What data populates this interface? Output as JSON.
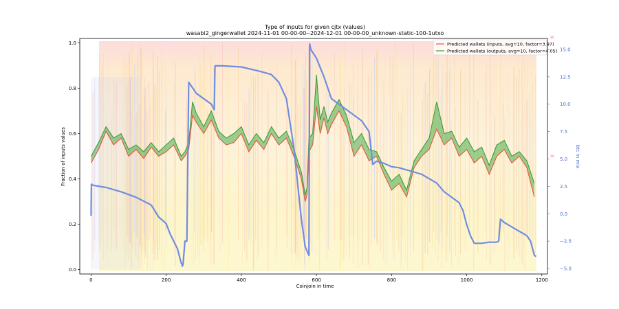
{
  "chart_data": {
    "type": "line",
    "title": "Type of inputs for given cjtx (values)",
    "subtitle": "wasabi2_gingerwallet 2024-11-01 00-00-00--2024-12-01 00-00-00_unknown-static-100-1utxo",
    "xlabel": "Coinjoin in time",
    "ylabel": "Fraction of inputs values",
    "y2label": "btc in mix",
    "xlim": [
      -30,
      1215
    ],
    "ylim": [
      -0.02,
      1.02
    ],
    "y2lim": [
      -5.5,
      16
    ],
    "xticks": [
      0,
      200,
      400,
      600,
      800,
      1000,
      1200
    ],
    "yticks": [
      0.0,
      0.2,
      0.4,
      0.6,
      0.8,
      1.0
    ],
    "y2ticks": [
      -5.0,
      -2.5,
      0.0,
      2.5,
      5.0,
      7.5,
      10.0,
      12.5,
      15.0
    ],
    "ytick_labels": [
      "0.0",
      "0.2",
      "0.4",
      "0.6",
      "0.8",
      "1.0"
    ],
    "y2tick_labels": [
      "−5.0",
      "−2.5",
      "0.0",
      "2.5",
      "5.0",
      "7.5",
      "10.0",
      "12.5",
      "15.0"
    ],
    "side_labels": [
      "20",
      "10"
    ],
    "legend_position": "top-right",
    "legend": [
      {
        "label": "Predicted wallets (inputs, avg=10, factor=3.97)",
        "color": "#e8553a"
      },
      {
        "label": "Predicted wallets (outputs, avg=10, factor=4.05)",
        "color": "#3f9b3f"
      }
    ],
    "colors": {
      "inputs": "#e8553a",
      "outputs": "#3f9b3f",
      "fill_between": "#4caf50",
      "btc_in_mix": "#6f8de0",
      "background_top": "#f7c6c6",
      "background_mid": "#fde2b8",
      "background_bottom": "#fdf3a8",
      "background_blue": "#c8d0f5"
    },
    "series": [
      {
        "name": "Predicted wallets (inputs, avg=10, factor=3.97)",
        "axis": "left",
        "x": [
          0,
          20,
          40,
          60,
          80,
          100,
          120,
          140,
          160,
          180,
          200,
          220,
          240,
          250,
          260,
          270,
          280,
          300,
          320,
          340,
          360,
          380,
          400,
          420,
          440,
          460,
          480,
          500,
          520,
          540,
          560,
          570,
          575,
          580,
          590,
          600,
          610,
          620,
          630,
          640,
          660,
          680,
          700,
          720,
          740,
          760,
          780,
          800,
          820,
          840,
          860,
          880,
          900,
          920,
          940,
          960,
          980,
          1000,
          1020,
          1040,
          1060,
          1080,
          1100,
          1120,
          1140,
          1160,
          1180
        ],
        "y": [
          0.47,
          0.53,
          0.61,
          0.55,
          0.58,
          0.5,
          0.53,
          0.49,
          0.54,
          0.5,
          0.52,
          0.55,
          0.48,
          0.5,
          0.53,
          0.68,
          0.65,
          0.6,
          0.66,
          0.58,
          0.55,
          0.56,
          0.6,
          0.52,
          0.57,
          0.53,
          0.6,
          0.55,
          0.58,
          0.5,
          0.4,
          0.3,
          0.33,
          0.52,
          0.55,
          0.72,
          0.6,
          0.67,
          0.6,
          0.64,
          0.7,
          0.63,
          0.5,
          0.55,
          0.48,
          0.5,
          0.42,
          0.35,
          0.38,
          0.32,
          0.45,
          0.5,
          0.53,
          0.62,
          0.55,
          0.58,
          0.5,
          0.53,
          0.47,
          0.5,
          0.42,
          0.5,
          0.53,
          0.47,
          0.5,
          0.45,
          0.32
        ]
      },
      {
        "name": "Predicted wallets (outputs, avg=10, factor=4.05)",
        "axis": "left",
        "x": [
          0,
          20,
          40,
          60,
          80,
          100,
          120,
          140,
          160,
          180,
          200,
          220,
          240,
          250,
          260,
          270,
          280,
          300,
          320,
          340,
          360,
          380,
          400,
          420,
          440,
          460,
          480,
          500,
          520,
          540,
          560,
          570,
          575,
          580,
          590,
          600,
          610,
          620,
          630,
          640,
          660,
          680,
          700,
          720,
          740,
          760,
          780,
          800,
          820,
          840,
          860,
          880,
          900,
          920,
          940,
          960,
          980,
          1000,
          1020,
          1040,
          1060,
          1080,
          1100,
          1120,
          1140,
          1160,
          1180
        ],
        "y": [
          0.5,
          0.56,
          0.63,
          0.58,
          0.6,
          0.53,
          0.55,
          0.52,
          0.56,
          0.52,
          0.55,
          0.58,
          0.5,
          0.52,
          0.56,
          0.74,
          0.69,
          0.63,
          0.7,
          0.61,
          0.58,
          0.6,
          0.63,
          0.55,
          0.6,
          0.56,
          0.63,
          0.58,
          0.61,
          0.53,
          0.43,
          0.33,
          0.36,
          0.58,
          0.6,
          0.86,
          0.66,
          0.72,
          0.65,
          0.69,
          0.75,
          0.68,
          0.56,
          0.6,
          0.53,
          0.52,
          0.45,
          0.39,
          0.42,
          0.35,
          0.48,
          0.53,
          0.58,
          0.74,
          0.6,
          0.61,
          0.54,
          0.58,
          0.52,
          0.54,
          0.46,
          0.55,
          0.57,
          0.5,
          0.52,
          0.48,
          0.38
        ]
      },
      {
        "name": "btc in mix",
        "axis": "right",
        "x": [
          0,
          1,
          5,
          40,
          80,
          120,
          160,
          180,
          200,
          210,
          220,
          230,
          240,
          242,
          243,
          245,
          250,
          255,
          258,
          260,
          270,
          280,
          300,
          320,
          325,
          328,
          330,
          350,
          400,
          450,
          480,
          500,
          520,
          540,
          560,
          570,
          580,
          582,
          585,
          600,
          620,
          640,
          660,
          680,
          700,
          720,
          740,
          750,
          760,
          780,
          800,
          820,
          840,
          860,
          880,
          900,
          920,
          940,
          960,
          980,
          990,
          1000,
          1010,
          1020,
          1040,
          1060,
          1080,
          1085,
          1090,
          1100,
          1120,
          1140,
          1160,
          1170,
          1180,
          1185
        ],
        "y": [
          -0.2,
          2.7,
          2.6,
          2.4,
          2.0,
          1.5,
          0.8,
          -0.3,
          -0.9,
          -1.8,
          -2.5,
          -3.2,
          -4.5,
          -4.6,
          -4.8,
          -4.6,
          -2.5,
          -2.5,
          6.0,
          12.0,
          11.5,
          11.0,
          10.5,
          10.0,
          9.7,
          9.5,
          13.5,
          13.5,
          13.4,
          13.0,
          12.7,
          12.0,
          10.5,
          6.0,
          -0.5,
          -3.0,
          -3.8,
          15.5,
          15.0,
          14.2,
          12.5,
          10.5,
          10.0,
          9.5,
          9.0,
          8.5,
          7.5,
          4.5,
          4.8,
          4.6,
          4.3,
          4.2,
          4.0,
          3.8,
          3.6,
          3.2,
          2.8,
          2.0,
          1.5,
          1.0,
          0.3,
          -1.0,
          -2.0,
          -2.7,
          -2.7,
          -2.6,
          -2.6,
          -2.5,
          -0.5,
          -0.8,
          -1.2,
          -1.6,
          -2.0,
          -2.5,
          -3.8,
          -3.9
        ]
      }
    ]
  }
}
